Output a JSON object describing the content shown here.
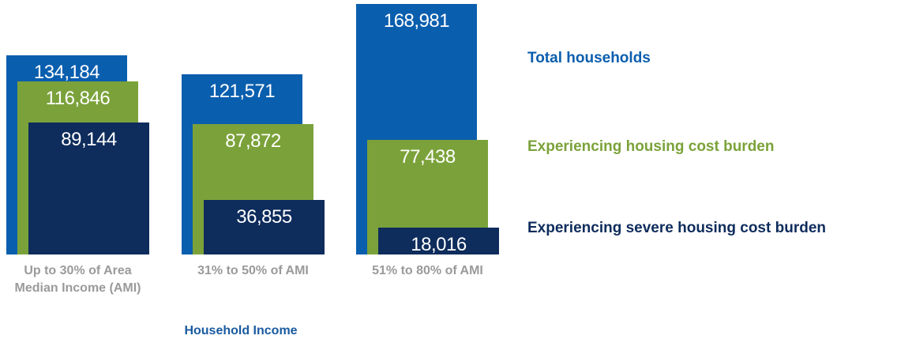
{
  "chart_data": {
    "type": "overlapping-bar",
    "categories": [
      "Up to 30% of Area Median Income (AMI)",
      "31% to 50% of AMI",
      "51% to 80% of AMI"
    ],
    "x_label": "Household Income",
    "series": [
      {
        "name": "Total households",
        "color": "#0a5eae",
        "values": [
          134184,
          121571,
          168981
        ],
        "value_labels": [
          "134,184",
          "121,571",
          "168,981"
        ]
      },
      {
        "name": "Experiencing housing cost burden",
        "color": "#7ba23a",
        "values": [
          116846,
          87872,
          77438
        ],
        "value_labels": [
          "116,846",
          "87,872",
          "77,438"
        ]
      },
      {
        "name": "Experiencing severe housing cost burden",
        "color": "#0e2c5c",
        "values": [
          89144,
          36855,
          18016
        ],
        "value_labels": [
          "89,144",
          "36,855",
          "18,016"
        ]
      }
    ]
  }
}
